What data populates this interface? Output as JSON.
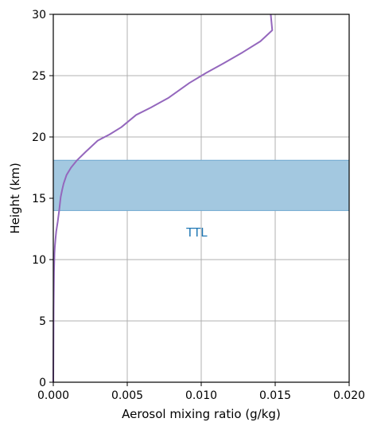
{
  "chart_data": {
    "type": "line",
    "xlabel": "Aerosol mixing ratio (g/kg)",
    "ylabel": "Height (km)",
    "xlim": [
      0,
      0.02
    ],
    "ylim": [
      0,
      30
    ],
    "xticks": [
      "0.000",
      "0.005",
      "0.010",
      "0.015",
      "0.020"
    ],
    "yticks": [
      "0",
      "5",
      "10",
      "15",
      "20",
      "25",
      "30"
    ],
    "grid": true,
    "band": {
      "ymin": 14,
      "ymax": 18.1,
      "label": "TTL",
      "color": "#a3c8e0",
      "label_color": "#1f77b4",
      "label_x": 0.0097,
      "label_y": 12.2
    },
    "series": [
      {
        "color": "#9467bd",
        "x": [
          0.0,
          1e-05,
          2e-05,
          5e-05,
          8e-05,
          0.0001,
          0.00015,
          0.0002,
          0.0003,
          0.0004,
          0.0005,
          0.0006,
          0.0007,
          0.0009,
          0.0012,
          0.0016,
          0.0022,
          0.003,
          0.0038,
          0.0046,
          0.0056,
          0.0066,
          0.0078,
          0.0092,
          0.0103,
          0.0115,
          0.0128,
          0.014,
          0.0148,
          0.0147
        ],
        "y": [
          0.0,
          3.0,
          6.0,
          9.0,
          10.5,
          11.0,
          11.7,
          12.3,
          13.1,
          14.0,
          15.1,
          15.7,
          16.2,
          16.9,
          17.5,
          18.1,
          18.8,
          19.7,
          20.2,
          20.8,
          21.8,
          22.4,
          23.2,
          24.4,
          25.2,
          26.0,
          26.9,
          27.8,
          28.7,
          30.0
        ]
      }
    ]
  }
}
